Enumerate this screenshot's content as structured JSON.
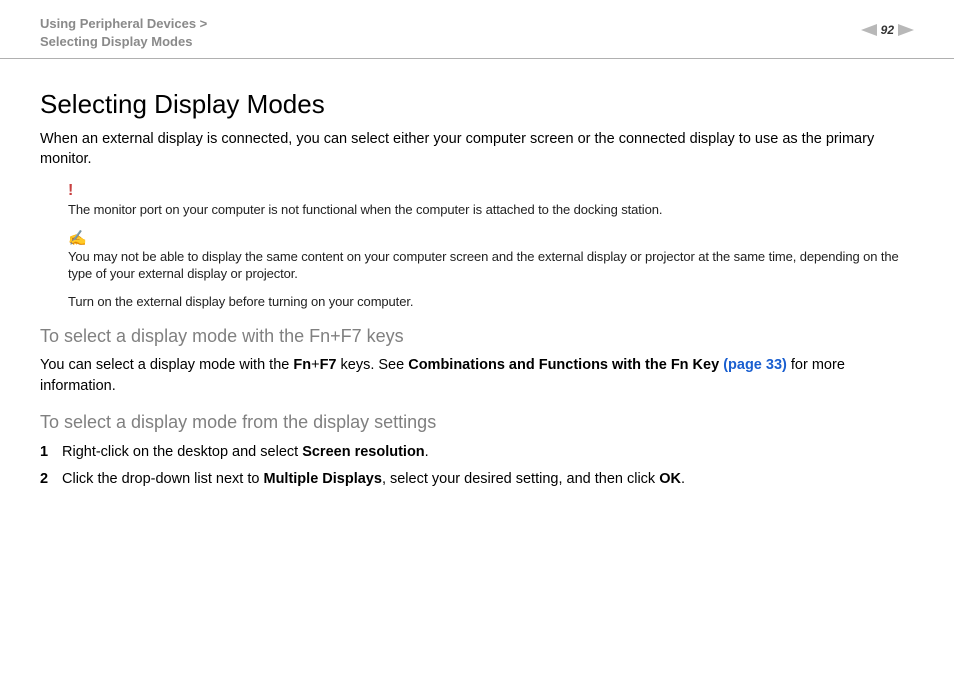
{
  "header": {
    "breadcrumb_line1": "Using Peripheral Devices >",
    "breadcrumb_line2": "Selecting Display Modes",
    "page_number": "92"
  },
  "title": "Selecting Display Modes",
  "intro": "When an external display is connected, you can select either your computer screen or the connected display to use as the primary monitor.",
  "warning": {
    "text": "The monitor port on your computer is not functional when the computer is attached to the docking station."
  },
  "note": {
    "line1": "You may not be able to display the same content on your computer screen and the external display or projector at the same time, depending on the type of your external display or projector.",
    "line2": "Turn on the external display before turning on your computer."
  },
  "section_fn": {
    "heading": "To select a display mode with the Fn+F7 keys",
    "p_prefix": "You can select a display mode with the ",
    "fn_label": "Fn",
    "plus": "+",
    "f7_label": "F7",
    "p_mid": " keys. See ",
    "link_label": "Combinations and Functions with the Fn Key ",
    "link_page": "(page 33)",
    "p_suffix": " for more information."
  },
  "section_settings": {
    "heading": "To select a display mode from the display settings",
    "steps": [
      {
        "num": "1",
        "prefix": "Right-click on the desktop and select ",
        "bold": "Screen resolution",
        "suffix": "."
      },
      {
        "num": "2",
        "prefix": "Click the drop-down list next to ",
        "bold": "Multiple Displays",
        "mid": ", select your desired setting, and then click ",
        "bold2": "OK",
        "suffix": "."
      }
    ]
  }
}
